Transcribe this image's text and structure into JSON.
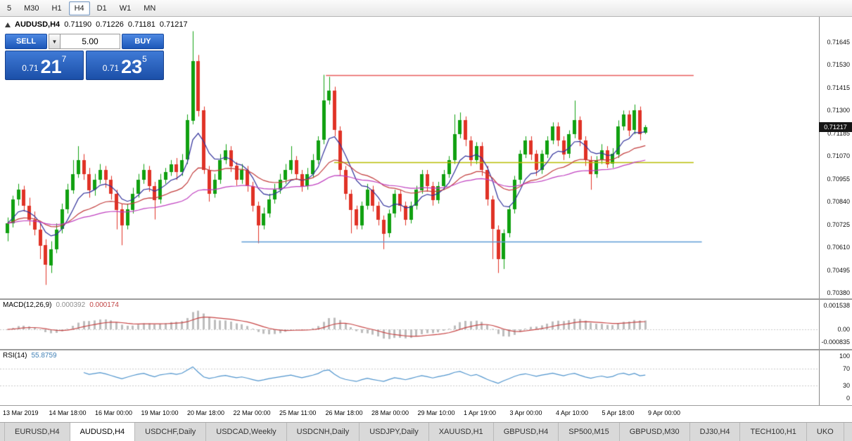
{
  "toolbar": {
    "timeframes": [
      "5",
      "M30",
      "H1",
      "H4",
      "D1",
      "W1",
      "MN"
    ],
    "active_timeframe": "H4"
  },
  "chart": {
    "symbol": "AUDUSD,H4",
    "ohlc": {
      "open": "0.71190",
      "high": "0.71226",
      "low": "0.71181",
      "close": "0.71217"
    }
  },
  "trade_panel": {
    "sell_label": "SELL",
    "buy_label": "BUY",
    "volume": "5.00",
    "sell_price": {
      "prefix": "0.71",
      "big": "21",
      "sup": "7",
      "full": "0.71217"
    },
    "buy_price": {
      "prefix": "0.71",
      "big": "23",
      "sup": "5",
      "full": "0.71235"
    }
  },
  "icons": {
    "dropdown_caret": "▼"
  },
  "price_axis": {
    "current": "0.71217"
  },
  "tabs": {
    "items": [
      "EURUSD,H4",
      "AUDUSD,H4",
      "USDCHF,Daily",
      "USDCAD,Weekly",
      "USDCNH,Daily",
      "USDJPY,Daily",
      "XAUUSD,H1",
      "GBPUSD,H4",
      "SP500,M15",
      "GBPUSD,M30",
      "DJ30,H4",
      "TECH100,H1",
      "UKO"
    ],
    "active": "AUDUSD,H4"
  },
  "colors": {
    "candle_up": "#10a010",
    "candle_down": "#e03226",
    "macd_hist": "#bdbdbd",
    "macd_signal": "#c74444",
    "rsi_line": "#4f94cd",
    "level_line": "#c9c9c9",
    "badge_bg": "#151515"
  },
  "chart_data": {
    "type": "candlestick",
    "symbol": "AUDUSD",
    "timeframe": "H4",
    "title": "AUDUSD,H4",
    "y_ticks": [
      "0.71645",
      "0.71530",
      "0.71415",
      "0.71300",
      "0.71185",
      "0.71070",
      "0.70955",
      "0.70840",
      "0.70725",
      "0.70610",
      "0.70495",
      "0.70380"
    ],
    "y_range": [
      0.7038,
      0.71645
    ],
    "x_labels": [
      "13 Mar 2019",
      "14 Mar 18:00",
      "16 Mar 00:00",
      "19 Mar 10:00",
      "20 Mar 18:00",
      "22 Mar 00:00",
      "25 Mar 11:00",
      "26 Mar 18:00",
      "28 Mar 00:00",
      "29 Mar 10:00",
      "1 Apr 19:00",
      "3 Apr 00:00",
      "4 Apr 10:00",
      "5 Apr 18:00",
      "9 Apr 00:00"
    ],
    "candles": [
      [
        0.7068,
        0.7076,
        0.7064,
        0.7073
      ],
      [
        0.7073,
        0.7087,
        0.7071,
        0.7085
      ],
      [
        0.7085,
        0.7093,
        0.7082,
        0.709
      ],
      [
        0.709,
        0.7092,
        0.7079,
        0.7082
      ],
      [
        0.7082,
        0.7086,
        0.7072,
        0.7075
      ],
      [
        0.7075,
        0.7079,
        0.7067,
        0.707
      ],
      [
        0.707,
        0.7073,
        0.7055,
        0.7062
      ],
      [
        0.7062,
        0.7065,
        0.7042,
        0.7052
      ],
      [
        0.7052,
        0.7064,
        0.7048,
        0.706
      ],
      [
        0.706,
        0.7073,
        0.7058,
        0.707
      ],
      [
        0.707,
        0.7083,
        0.7068,
        0.708
      ],
      [
        0.708,
        0.7093,
        0.7078,
        0.709
      ],
      [
        0.709,
        0.7105,
        0.7088,
        0.7098
      ],
      [
        0.7098,
        0.7112,
        0.7096,
        0.7105
      ],
      [
        0.7105,
        0.7108,
        0.7095,
        0.7098
      ],
      [
        0.7098,
        0.7101,
        0.7086,
        0.709
      ],
      [
        0.709,
        0.7098,
        0.7087,
        0.7095
      ],
      [
        0.7095,
        0.7103,
        0.7093,
        0.71
      ],
      [
        0.71,
        0.7102,
        0.7091,
        0.7095
      ],
      [
        0.7095,
        0.7097,
        0.7085,
        0.7088
      ],
      [
        0.7088,
        0.709,
        0.707,
        0.708
      ],
      [
        0.708,
        0.7083,
        0.7062,
        0.7072
      ],
      [
        0.7072,
        0.7083,
        0.707,
        0.708
      ],
      [
        0.708,
        0.7091,
        0.7078,
        0.7088
      ],
      [
        0.7088,
        0.7098,
        0.7086,
        0.7095
      ],
      [
        0.7095,
        0.7103,
        0.7093,
        0.71
      ],
      [
        0.71,
        0.7102,
        0.7089,
        0.7092
      ],
      [
        0.7092,
        0.7094,
        0.7075,
        0.7085
      ],
      [
        0.7085,
        0.7098,
        0.7083,
        0.7095
      ],
      [
        0.7095,
        0.7101,
        0.7093,
        0.7099
      ],
      [
        0.7099,
        0.7105,
        0.7097,
        0.7103
      ],
      [
        0.7103,
        0.7106,
        0.7095,
        0.7099
      ],
      [
        0.7099,
        0.7108,
        0.7097,
        0.7105
      ],
      [
        0.7105,
        0.7128,
        0.7103,
        0.7125
      ],
      [
        0.7125,
        0.717,
        0.7123,
        0.7155
      ],
      [
        0.7155,
        0.7158,
        0.7127,
        0.713
      ],
      [
        0.713,
        0.7132,
        0.7098,
        0.71
      ],
      [
        0.71,
        0.7102,
        0.7084,
        0.7088
      ],
      [
        0.7088,
        0.7098,
        0.7086,
        0.7095
      ],
      [
        0.7095,
        0.7108,
        0.7093,
        0.7105
      ],
      [
        0.7105,
        0.7113,
        0.7103,
        0.711
      ],
      [
        0.711,
        0.7112,
        0.7099,
        0.7102
      ],
      [
        0.7102,
        0.7104,
        0.7092,
        0.7095
      ],
      [
        0.7095,
        0.7103,
        0.7093,
        0.71
      ],
      [
        0.71,
        0.7102,
        0.7089,
        0.7092
      ],
      [
        0.7092,
        0.7094,
        0.7079,
        0.7082
      ],
      [
        0.7082,
        0.7084,
        0.7063,
        0.7072
      ],
      [
        0.7072,
        0.7081,
        0.707,
        0.7078
      ],
      [
        0.7078,
        0.7088,
        0.7076,
        0.7085
      ],
      [
        0.7085,
        0.7093,
        0.7083,
        0.709
      ],
      [
        0.709,
        0.7098,
        0.7088,
        0.7095
      ],
      [
        0.7095,
        0.7103,
        0.7093,
        0.71
      ],
      [
        0.71,
        0.7112,
        0.7098,
        0.7105
      ],
      [
        0.7105,
        0.7107,
        0.7095,
        0.7098
      ],
      [
        0.7098,
        0.71,
        0.7089,
        0.7092
      ],
      [
        0.7092,
        0.7101,
        0.709,
        0.7098
      ],
      [
        0.7098,
        0.7108,
        0.7096,
        0.7105
      ],
      [
        0.7105,
        0.7117,
        0.7103,
        0.7115
      ],
      [
        0.7115,
        0.7148,
        0.7113,
        0.7135
      ],
      [
        0.7135,
        0.7147,
        0.7133,
        0.714
      ],
      [
        0.714,
        0.7142,
        0.7117,
        0.712
      ],
      [
        0.712,
        0.7122,
        0.7097,
        0.71
      ],
      [
        0.71,
        0.7102,
        0.7085,
        0.7088
      ],
      [
        0.7088,
        0.709,
        0.7068,
        0.708
      ],
      [
        0.708,
        0.7082,
        0.707,
        0.7072
      ],
      [
        0.7072,
        0.7084,
        0.707,
        0.7082
      ],
      [
        0.7082,
        0.7093,
        0.708,
        0.709
      ],
      [
        0.709,
        0.7092,
        0.7079,
        0.7082
      ],
      [
        0.7082,
        0.7084,
        0.7072,
        0.7075
      ],
      [
        0.7075,
        0.7077,
        0.706,
        0.7068
      ],
      [
        0.7068,
        0.708,
        0.7066,
        0.7078
      ],
      [
        0.7078,
        0.709,
        0.7076,
        0.7088
      ],
      [
        0.7088,
        0.709,
        0.7079,
        0.7082
      ],
      [
        0.7082,
        0.7084,
        0.7072,
        0.7075
      ],
      [
        0.7075,
        0.7084,
        0.7073,
        0.7082
      ],
      [
        0.7082,
        0.7092,
        0.708,
        0.709
      ],
      [
        0.709,
        0.71,
        0.7088,
        0.7098
      ],
      [
        0.7098,
        0.71,
        0.7089,
        0.7092
      ],
      [
        0.7092,
        0.7094,
        0.7082,
        0.7085
      ],
      [
        0.7085,
        0.7094,
        0.7083,
        0.7092
      ],
      [
        0.7092,
        0.71,
        0.709,
        0.7098
      ],
      [
        0.7098,
        0.7107,
        0.7096,
        0.7105
      ],
      [
        0.7105,
        0.7128,
        0.7103,
        0.7118
      ],
      [
        0.7118,
        0.7129,
        0.7116,
        0.7125
      ],
      [
        0.7125,
        0.7127,
        0.7112,
        0.7115
      ],
      [
        0.7115,
        0.7117,
        0.7102,
        0.7105
      ],
      [
        0.7105,
        0.7114,
        0.7103,
        0.7112
      ],
      [
        0.7112,
        0.7114,
        0.7097,
        0.71
      ],
      [
        0.71,
        0.7102,
        0.7082,
        0.7085
      ],
      [
        0.7085,
        0.7087,
        0.7055,
        0.707
      ],
      [
        0.707,
        0.7072,
        0.7048,
        0.7055
      ],
      [
        0.7055,
        0.707,
        0.705,
        0.7068
      ],
      [
        0.7068,
        0.7082,
        0.7066,
        0.708
      ],
      [
        0.708,
        0.7097,
        0.7078,
        0.7095
      ],
      [
        0.7095,
        0.711,
        0.7093,
        0.7108
      ],
      [
        0.7108,
        0.7117,
        0.7106,
        0.7115
      ],
      [
        0.7115,
        0.7117,
        0.7105,
        0.7108
      ],
      [
        0.7108,
        0.711,
        0.7097,
        0.71
      ],
      [
        0.71,
        0.711,
        0.7098,
        0.7108
      ],
      [
        0.7108,
        0.7117,
        0.7106,
        0.7115
      ],
      [
        0.7115,
        0.7124,
        0.7113,
        0.7122
      ],
      [
        0.7122,
        0.7124,
        0.7112,
        0.7115
      ],
      [
        0.7115,
        0.7117,
        0.7105,
        0.7108
      ],
      [
        0.7108,
        0.712,
        0.7106,
        0.7118
      ],
      [
        0.7118,
        0.7135,
        0.7116,
        0.7125
      ],
      [
        0.7125,
        0.7127,
        0.7112,
        0.7115
      ],
      [
        0.7115,
        0.7117,
        0.7102,
        0.7105
      ],
      [
        0.7105,
        0.7107,
        0.709,
        0.7098
      ],
      [
        0.7098,
        0.7107,
        0.7096,
        0.7105
      ],
      [
        0.7105,
        0.7113,
        0.7103,
        0.711
      ],
      [
        0.711,
        0.7112,
        0.7101,
        0.7103
      ],
      [
        0.7103,
        0.7111,
        0.7101,
        0.7108
      ],
      [
        0.7108,
        0.7125,
        0.7106,
        0.7122
      ],
      [
        0.7122,
        0.713,
        0.712,
        0.7128
      ],
      [
        0.7128,
        0.713,
        0.7117,
        0.712
      ],
      [
        0.712,
        0.7133,
        0.7118,
        0.713
      ],
      [
        0.713,
        0.7132,
        0.7115,
        0.7118
      ],
      [
        0.7119,
        0.71226,
        0.71181,
        0.71217
      ]
    ],
    "hlines": [
      {
        "price": 0.7148,
        "color": "#e85b5b",
        "from": 0.398,
        "to": 0.847
      },
      {
        "price": 0.7104,
        "color": "#b9bb00",
        "from": 0.408,
        "to": 0.847
      },
      {
        "price": 0.7064,
        "color": "#5b9bd5",
        "from": 0.295,
        "to": 0.857
      }
    ],
    "moving_averages": [
      {
        "period": 8,
        "method": "ema",
        "color": "#30309a"
      },
      {
        "period": 24,
        "method": "ema",
        "color": "#c23b3b"
      },
      {
        "period": 55,
        "method": "ema",
        "color": "#bf3ebf"
      }
    ],
    "indicators": {
      "macd": {
        "label": "MACD(12,26,9)",
        "params": [
          12,
          26,
          9
        ],
        "value_main": "0.000392",
        "value_signal": "0.000174",
        "scale_ticks": [
          "0.001538",
          "0.00",
          "-0.000835"
        ]
      },
      "rsi": {
        "label": "RSI(14)",
        "period": 14,
        "value": "55.8759",
        "scale_ticks": [
          "100",
          "70",
          "30",
          "0"
        ],
        "levels": [
          70,
          30
        ]
      }
    }
  }
}
